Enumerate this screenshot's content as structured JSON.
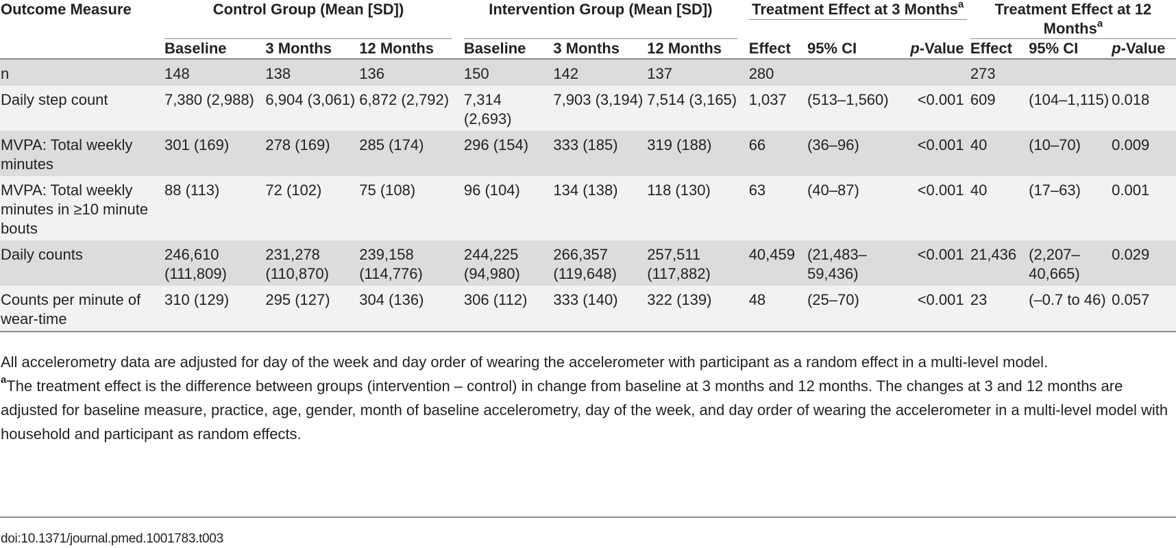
{
  "table": {
    "header": {
      "outcome": "Outcome Measure",
      "control_group": "Control Group (Mean [SD])",
      "intervention_group": "Intervention Group (Mean [SD])",
      "effect3": "Treatment Effect at 3 Months",
      "effect12": "Treatment Effect at 12 Months",
      "footnote_marker": "a",
      "sub": {
        "baseline": "Baseline",
        "m3": "3 Months",
        "m12": "12 Months",
        "effect": "Effect",
        "ci": "95% CI",
        "p_italic": "p",
        "p_rest": "-Value"
      }
    },
    "rows": [
      {
        "label": "n",
        "c_base": "148",
        "c_3": "138",
        "c_12": "136",
        "i_base": "150",
        "i_3": "142",
        "i_12": "137",
        "e3": "280",
        "ci3": "",
        "p3": "",
        "e12": "273",
        "ci12": "",
        "p12": ""
      },
      {
        "label": "Daily step count",
        "c_base": "7,380 (2,988)",
        "c_3": "6,904 (3,061)",
        "c_12": "6,872 (2,792)",
        "i_base": "7,314 (2,693)",
        "i_3": "7,903 (3,194)",
        "i_12": "7,514 (3,165)",
        "e3": "1,037",
        "ci3": "(513–1,560)",
        "p3": "<0.001",
        "e12": "609",
        "ci12": "(104–1,115)",
        "p12": "0.018"
      },
      {
        "label": "MVPA: Total weekly minutes",
        "c_base": "301 (169)",
        "c_3": "278 (169)",
        "c_12": "285 (174)",
        "i_base": "296 (154)",
        "i_3": "333 (185)",
        "i_12": "319 (188)",
        "e3": "66",
        "ci3": "(36–96)",
        "p3": "<0.001",
        "e12": "40",
        "ci12": "(10–70)",
        "p12": "0.009"
      },
      {
        "label": "MVPA: Total weekly minutes in ≥10 minute bouts",
        "c_base": "88 (113)",
        "c_3": "72 (102)",
        "c_12": "75 (108)",
        "i_base": "96 (104)",
        "i_3": "134 (138)",
        "i_12": "118 (130)",
        "e3": "63",
        "ci3": "(40–87)",
        "p3": "<0.001",
        "e12": "40",
        "ci12": "(17–63)",
        "p12": "0.001"
      },
      {
        "label": "Daily counts",
        "c_base": "246,610 (111,809)",
        "c_3": "231,278 (110,870)",
        "c_12": "239,158 (114,776)",
        "i_base": "244,225 (94,980)",
        "i_3": "266,357 (119,648)",
        "i_12": "257,511 (117,882)",
        "e3": "40,459",
        "ci3": "(21,483–59,436)",
        "p3": "<0.001",
        "e12": "21,436",
        "ci12": "(2,207–40,665)",
        "p12": "0.029"
      },
      {
        "label": "Counts per minute of wear-time",
        "c_base": "310 (129)",
        "c_3": "295 (127)",
        "c_12": "304 (136)",
        "i_base": "306 (112)",
        "i_3": "333 (140)",
        "i_12": "322 (139)",
        "e3": "48",
        "ci3": "(25–70)",
        "p3": "<0.001",
        "e12": "23",
        "ci12": "(–0.7 to 46)",
        "p12": "0.057"
      }
    ]
  },
  "notes": {
    "note1": "All accelerometry data are adjusted for day of the week and day order of wearing the accelerometer with participant as a random effect in a multi-level model.",
    "note2_marker": "a",
    "note2": "The treatment effect is the difference between groups (intervention – control) in change from baseline at 3 months and 12 months. The changes at 3 and 12 months are adjusted for baseline measure, practice, age, gender, month of baseline accelerometry, day of the week, and day order of wearing the accelerometer in a multi-level model with household and participant as random effects."
  },
  "doi": "doi:10.1371/journal.pmed.1001783.t003"
}
